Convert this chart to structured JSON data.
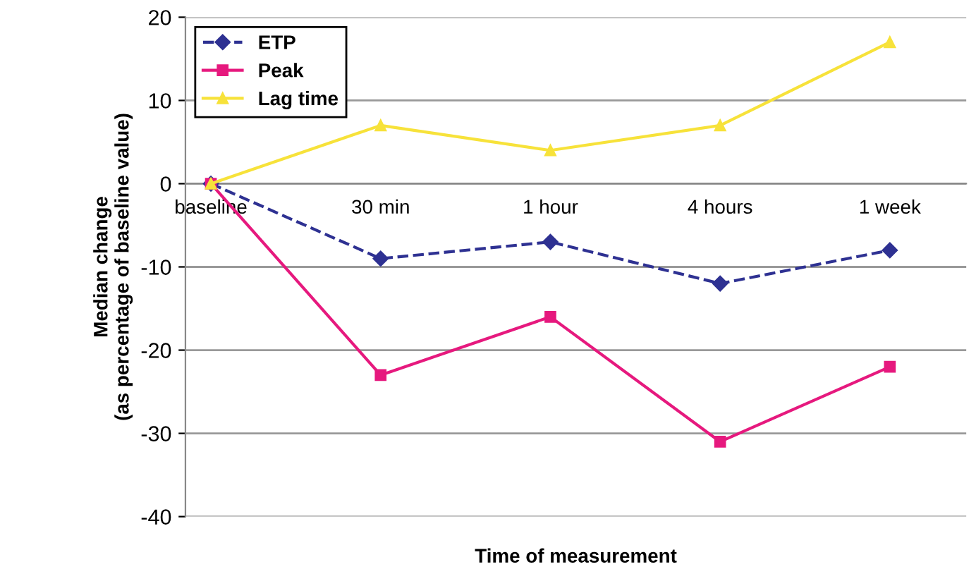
{
  "chart_data": {
    "type": "line",
    "xlabel": "Time of measurement",
    "ylabel": "Median change\n(as percentage of baseline value)",
    "categories": [
      "baseline",
      "30 min",
      "1 hour",
      "4 hours",
      "1 week"
    ],
    "series": [
      {
        "name": "ETP",
        "color": "#2e3192",
        "values": [
          0,
          -9,
          -7,
          -12,
          -8
        ],
        "marker": "diamond",
        "line_style": "dashed"
      },
      {
        "name": "Peak",
        "color": "#e6197e",
        "values": [
          0,
          -23,
          -16,
          -31,
          -22
        ],
        "marker": "square",
        "line_style": "solid"
      },
      {
        "name": "Lag time",
        "color": "#f7e23a",
        "values": [
          0,
          7,
          4,
          7,
          17
        ],
        "marker": "triangle",
        "line_style": "solid"
      }
    ],
    "ylim": [
      -40,
      20
    ],
    "yticks": [
      -40,
      -30,
      -20,
      -10,
      0,
      10,
      20
    ],
    "grid": "y",
    "legend": "top left"
  }
}
